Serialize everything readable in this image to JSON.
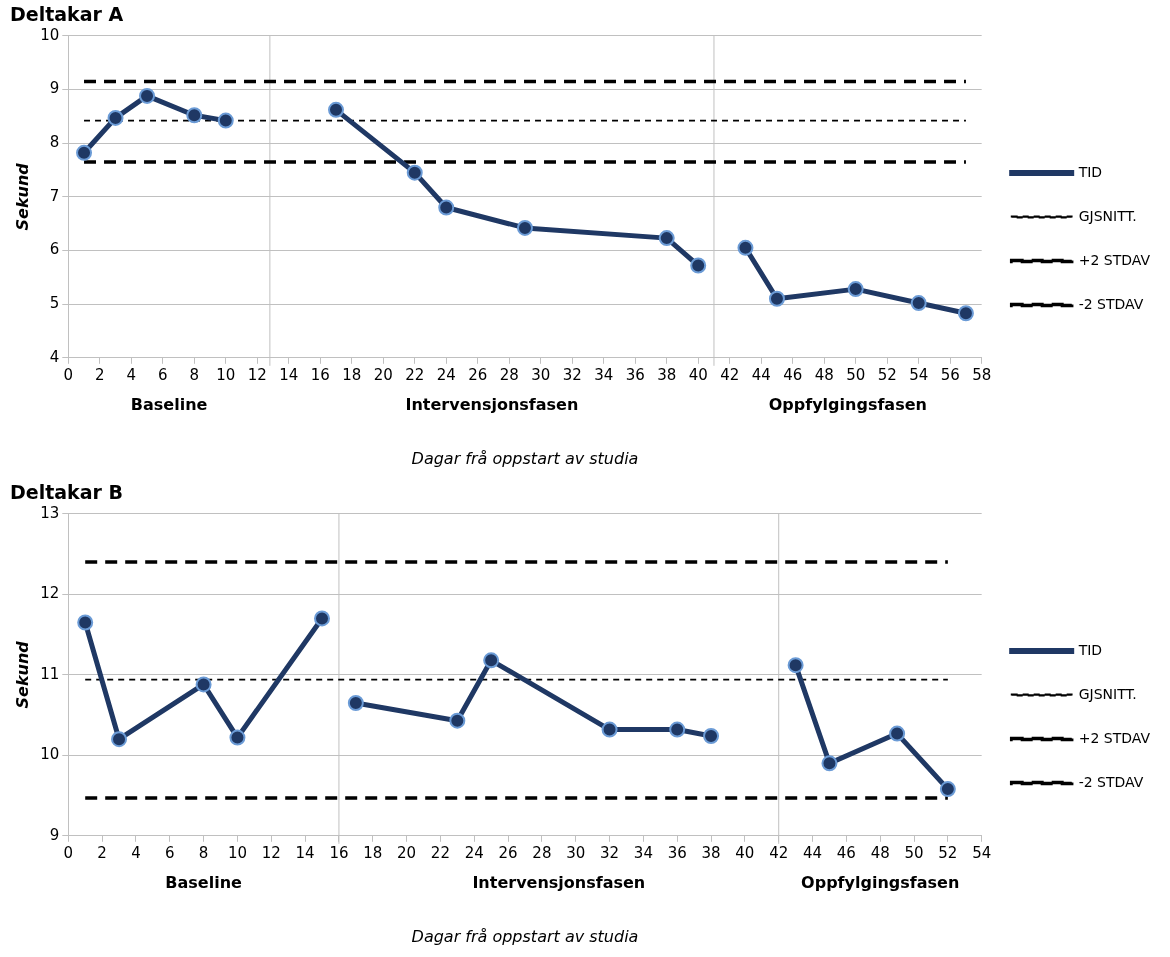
{
  "chart_data": [
    {
      "type": "line",
      "title": "Deltakar A",
      "xlabel": "Dagar frå oppstart av studia",
      "ylabel": "Sekund",
      "xlim": [
        0,
        58
      ],
      "xticks": [
        0,
        2,
        4,
        6,
        8,
        10,
        12,
        14,
        16,
        18,
        20,
        22,
        24,
        26,
        28,
        30,
        32,
        34,
        36,
        38,
        40,
        42,
        44,
        46,
        48,
        50,
        52,
        54,
        56,
        58
      ],
      "ylim": [
        4,
        10
      ],
      "yticks": [
        4,
        5,
        6,
        7,
        8,
        9,
        10
      ],
      "grid": "y",
      "legend": "right",
      "series": [
        {
          "name": "TID",
          "color": "#1f3864",
          "marker": "circle",
          "line_style": "solid",
          "x": [
            1,
            3,
            5,
            8,
            10,
            12.8,
            17,
            22,
            24,
            29,
            38,
            40,
            41,
            43,
            45,
            50,
            54,
            57
          ],
          "values": [
            7.82,
            8.47,
            8.88,
            8.52,
            8.42,
            null,
            8.62,
            7.45,
            6.8,
            6.42,
            6.23,
            5.72,
            null,
            6.05,
            5.1,
            5.28,
            5.02,
            4.83
          ]
        },
        {
          "name": "GJSNITT.",
          "color": "#000000",
          "marker": "none",
          "line_style": "dotted",
          "x": [
            1,
            57
          ],
          "values": [
            8.42,
            8.42
          ]
        },
        {
          "name": "+2 STDAV",
          "color": "#000000",
          "marker": "none",
          "line_style": "dashed",
          "x": [
            1,
            57
          ],
          "values": [
            9.15,
            9.15
          ]
        },
        {
          "name": "-2 STDAV",
          "color": "#000000",
          "marker": "none",
          "line_style": "dashed",
          "x": [
            1,
            57
          ],
          "values": [
            7.65,
            7.65
          ]
        }
      ],
      "ref_lines": [
        {
          "axis": "x",
          "value": 12.8,
          "color": "#c0c0c0"
        },
        {
          "axis": "x",
          "value": 41,
          "color": "#c0c0c0"
        }
      ],
      "annotations": [
        "Baseline",
        "Intervensjonsfasen",
        "Oppfylgingsfasen"
      ]
    },
    {
      "type": "line",
      "title": "Deltakar B",
      "xlabel": "Dagar frå oppstart av studia",
      "ylabel": "Sekund",
      "xlim": [
        0,
        54
      ],
      "xticks": [
        0,
        2,
        4,
        6,
        8,
        10,
        12,
        14,
        16,
        18,
        20,
        22,
        24,
        26,
        28,
        30,
        32,
        34,
        36,
        38,
        40,
        42,
        44,
        46,
        48,
        50,
        52,
        54
      ],
      "ylim": [
        9,
        13
      ],
      "yticks": [
        9,
        10,
        11,
        12,
        13
      ],
      "grid": "y",
      "legend": "right",
      "series": [
        {
          "name": "TID",
          "color": "#1f3864",
          "marker": "circle",
          "line_style": "solid",
          "x": [
            1,
            3,
            8,
            10,
            15,
            16,
            17,
            23,
            25,
            32,
            36,
            38,
            42,
            43,
            45,
            49,
            52
          ],
          "values": [
            11.65,
            10.2,
            10.88,
            10.22,
            11.7,
            null,
            10.65,
            10.43,
            11.18,
            10.32,
            10.32,
            10.24,
            null,
            11.12,
            9.9,
            10.27,
            9.58
          ]
        },
        {
          "name": "GJSNITT.",
          "color": "#000000",
          "marker": "none",
          "line_style": "dotted",
          "x": [
            1,
            52
          ],
          "values": [
            10.94,
            10.94
          ]
        },
        {
          "name": "+2 STDAV",
          "color": "#000000",
          "marker": "none",
          "line_style": "dashed",
          "x": [
            1,
            52
          ],
          "values": [
            12.4,
            12.4
          ]
        },
        {
          "name": "-2 STDAV",
          "color": "#000000",
          "marker": "none",
          "line_style": "dashed",
          "x": [
            1,
            52
          ],
          "values": [
            9.47,
            9.47
          ]
        }
      ],
      "ref_lines": [
        {
          "axis": "x",
          "value": 16,
          "color": "#c0c0c0"
        },
        {
          "axis": "x",
          "value": 42,
          "color": "#c0c0c0"
        }
      ],
      "annotations": [
        "Baseline",
        "Intervensjonsfasen",
        "Oppfylgingsfasen"
      ]
    }
  ]
}
